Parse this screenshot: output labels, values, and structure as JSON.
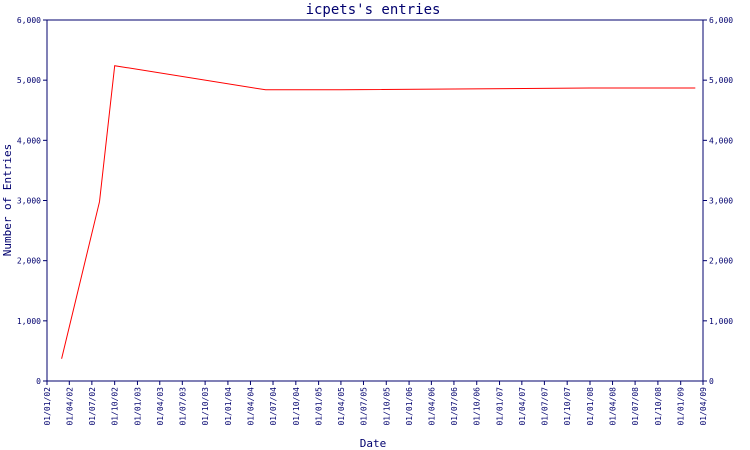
{
  "chart_data": {
    "type": "line",
    "title": "icpets's entries",
    "xlabel": "Date",
    "ylabel": "Number of Entries",
    "ylim": [
      0,
      6000
    ],
    "y_ticks": [
      0,
      1000,
      2000,
      3000,
      4000,
      5000,
      6000
    ],
    "y_tick_labels": [
      "0",
      "1,000",
      "2,000",
      "3,000",
      "4,000",
      "5,000",
      "6,000"
    ],
    "x_tick_labels": [
      "01/01/02",
      "01/04/02",
      "01/07/02",
      "01/10/02",
      "01/01/03",
      "01/04/03",
      "01/07/03",
      "01/10/03",
      "01/01/04",
      "01/04/04",
      "01/07/04",
      "01/10/04",
      "01/01/05",
      "01/04/05",
      "01/07/05",
      "01/10/05",
      "01/01/06",
      "01/04/06",
      "01/07/06",
      "01/10/06",
      "01/01/07",
      "01/04/07",
      "01/07/07",
      "01/10/07",
      "01/01/08",
      "01/04/08",
      "01/07/08",
      "01/10/08",
      "01/01/09",
      "01/04/09"
    ],
    "grid": false,
    "line_color": "#ff0000",
    "axis_color": "#00006e",
    "series": [
      {
        "x": [
          "01/03/02",
          "01/08/02",
          "01/10/02",
          "01/06/04",
          "01/04/05",
          "01/01/08",
          "01/03/09"
        ],
        "values": [
          370,
          2980,
          5240,
          4840,
          4840,
          4870,
          4870
        ]
      }
    ]
  }
}
